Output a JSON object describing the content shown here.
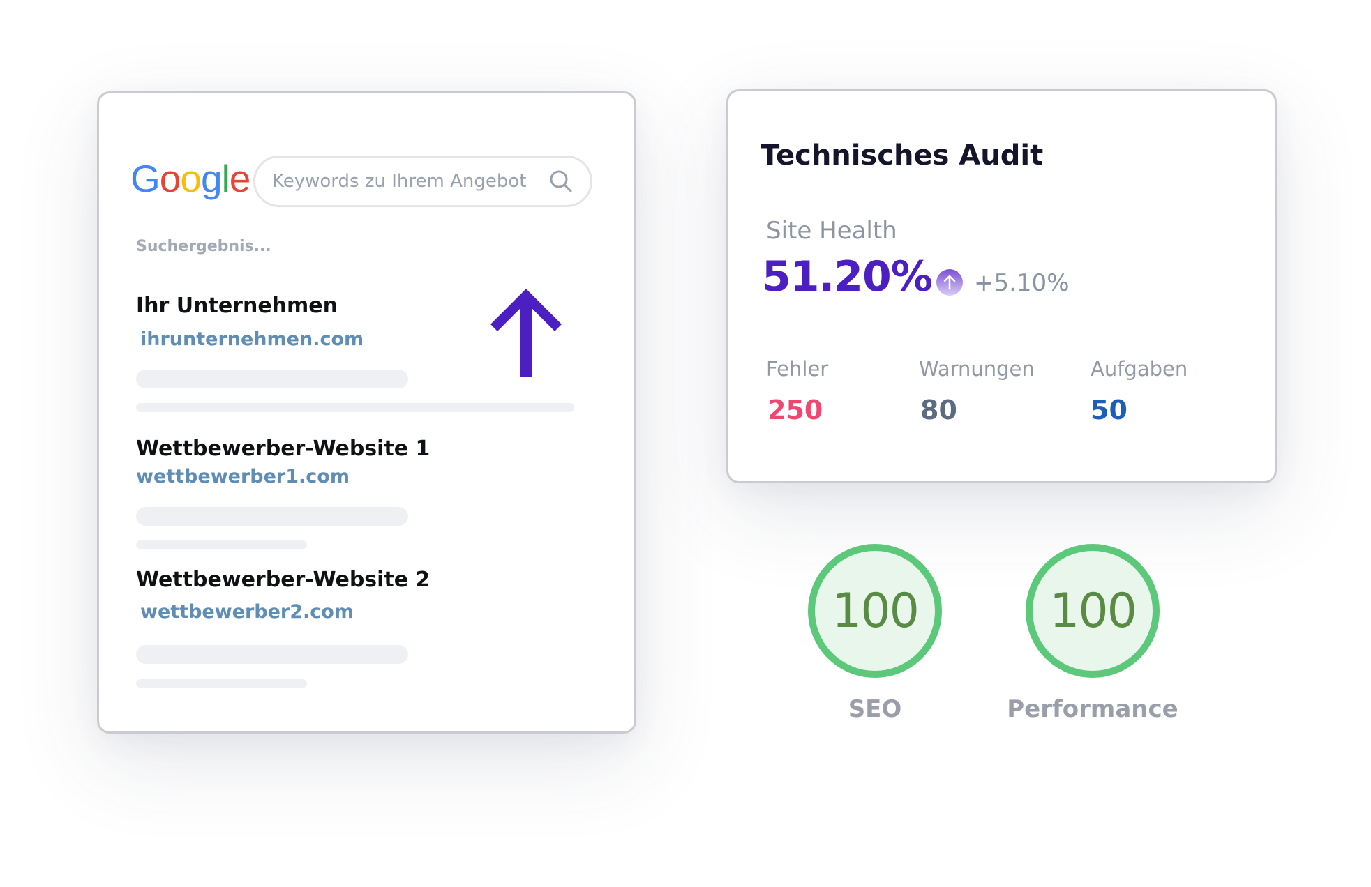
{
  "colors": {
    "accent_purple": "#4b1fc2",
    "url_blue": "#5f8db4",
    "error_red": "#ef476f",
    "warning_slate": "#5b6b80",
    "task_blue": "#1b5fb8",
    "score_green": "#5cc87a",
    "score_text_green": "#5a8b45"
  },
  "serp": {
    "logo_text": "Google",
    "search_placeholder": "Keywords zu Ihrem Angebot",
    "results_label": "Suchergebnis...",
    "results": [
      {
        "title": "Ihr Unternehmen",
        "url": "ihrunternehmen.com"
      },
      {
        "title": "Wettbewerber-Website 1",
        "url": "wettbewerber1.com"
      },
      {
        "title": "Wettbewerber-Website 2",
        "url": "wettbewerber2.com"
      }
    ],
    "icons": {
      "search": "search-icon",
      "rank_arrow": "arrow-up-icon"
    }
  },
  "audit": {
    "title": "Technisches Audit",
    "site_health": {
      "label": "Site Health",
      "value": "51.20%",
      "trend": "+5.10%",
      "trend_icon": "arrow-up-circle-icon"
    },
    "stats": [
      {
        "label": "Fehler",
        "value": "250"
      },
      {
        "label": "Warnungen",
        "value": "80"
      },
      {
        "label": "Aufgaben",
        "value": "50"
      }
    ]
  },
  "scores": [
    {
      "label": "SEO",
      "value": "100"
    },
    {
      "label": "Performance",
      "value": "100"
    }
  ]
}
